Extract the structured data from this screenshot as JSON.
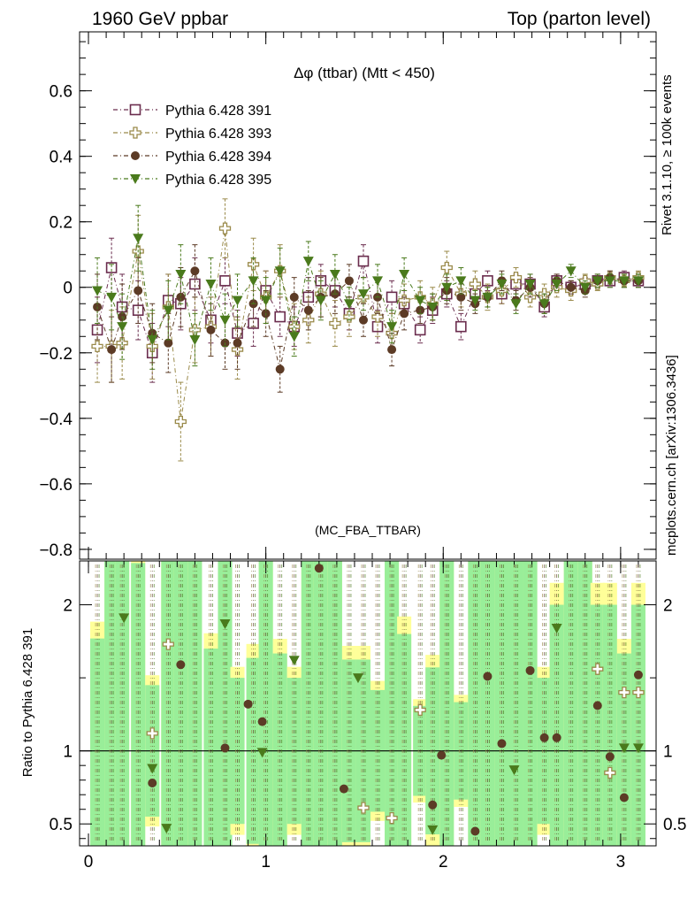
{
  "header": {
    "left": "1960 GeV ppbar",
    "right": "Top (parton level)"
  },
  "side": {
    "rivet": "Rivet 3.1.10, ≥ 100k events",
    "mcplots": "mcplots.cern.ch [arXiv:1306.3436]"
  },
  "chart_data": {
    "type": "scatter",
    "title": "Δφ (ttbar) (Mtt < 450)",
    "watermark": "(MC_FBA_TTBAR)",
    "xlim": [
      -0.05,
      3.2
    ],
    "ylim": [
      -0.83,
      0.78
    ],
    "x_ticks": [
      0,
      1,
      2,
      3
    ],
    "y_ticks": [
      0.6,
      0.4,
      0.2,
      0,
      -0.2,
      -0.4,
      -0.6,
      -0.8
    ],
    "x_tick_labels": [
      "0",
      "1",
      "2",
      "3"
    ],
    "y_tick_labels": [
      "0.6",
      "0.4",
      "0.2",
      "0",
      "−0.2",
      "−0.4",
      "−0.6",
      "−0.8"
    ],
    "x": [
      0.05,
      0.13,
      0.19,
      0.28,
      0.36,
      0.45,
      0.52,
      0.6,
      0.69,
      0.77,
      0.84,
      0.93,
      1.0,
      1.08,
      1.16,
      1.24,
      1.31,
      1.39,
      1.47,
      1.55,
      1.63,
      1.71,
      1.78,
      1.87,
      1.94,
      2.02,
      2.1,
      2.18,
      2.25,
      2.33,
      2.41,
      2.49,
      2.57,
      2.64,
      2.72,
      2.8,
      2.87,
      2.94,
      3.02,
      3.1
    ],
    "series": [
      {
        "name": "Pythia 6.428 391",
        "color": "#6b2d4e",
        "marker": "open-square",
        "values": [
          -0.13,
          0.06,
          -0.06,
          -0.07,
          -0.2,
          -0.04,
          -0.05,
          0.01,
          -0.1,
          0.02,
          -0.14,
          -0.11,
          -0.01,
          -0.09,
          -0.12,
          -0.03,
          0.02,
          -0.01,
          -0.08,
          0.08,
          -0.12,
          -0.03,
          -0.05,
          -0.13,
          -0.07,
          -0.02,
          -0.12,
          -0.02,
          0.02,
          -0.02,
          0.01,
          0.01,
          -0.06,
          0.02,
          0.0,
          0.01,
          0.02,
          0.02,
          0.03,
          0.02
        ],
        "errors": [
          0.1,
          0.09,
          0.1,
          0.09,
          0.09,
          0.08,
          0.08,
          0.08,
          0.07,
          0.07,
          0.07,
          0.07,
          0.06,
          0.06,
          0.06,
          0.06,
          0.05,
          0.05,
          0.05,
          0.05,
          0.05,
          0.05,
          0.04,
          0.04,
          0.04,
          0.04,
          0.04,
          0.03,
          0.03,
          0.03,
          0.03,
          0.03,
          0.03,
          0.02,
          0.02,
          0.02,
          0.02,
          0.02,
          0.02,
          0.02
        ]
      },
      {
        "name": "Pythia 6.428 393",
        "color": "#9a8a4a",
        "marker": "open-plus",
        "values": [
          -0.18,
          -0.18,
          -0.17,
          0.11,
          -0.18,
          -0.06,
          -0.41,
          -0.13,
          -0.12,
          0.18,
          -0.19,
          0.07,
          -0.03,
          0.05,
          -0.12,
          -0.1,
          -0.02,
          -0.11,
          -0.09,
          -0.03,
          -0.09,
          -0.14,
          -0.04,
          -0.03,
          -0.05,
          0.06,
          -0.02,
          0.01,
          -0.03,
          -0.01,
          0.03,
          -0.03,
          -0.02,
          0.0,
          -0.01,
          0.02,
          0.01,
          0.03,
          0.02,
          0.03
        ],
        "errors": [
          0.11,
          0.11,
          0.11,
          0.11,
          0.1,
          0.1,
          0.12,
          0.1,
          0.09,
          0.09,
          0.09,
          0.08,
          0.08,
          0.08,
          0.07,
          0.07,
          0.07,
          0.07,
          0.06,
          0.06,
          0.06,
          0.06,
          0.05,
          0.05,
          0.05,
          0.05,
          0.04,
          0.04,
          0.04,
          0.04,
          0.03,
          0.03,
          0.03,
          0.03,
          0.03,
          0.02,
          0.02,
          0.02,
          0.02,
          0.02
        ]
      },
      {
        "name": "Pythia 6.428 394",
        "color": "#5c3b26",
        "marker": "filled-circle",
        "values": [
          -0.06,
          -0.19,
          -0.09,
          -0.01,
          -0.14,
          -0.17,
          -0.03,
          0.05,
          -0.13,
          -0.17,
          -0.17,
          -0.05,
          -0.08,
          -0.25,
          -0.03,
          -0.07,
          -0.03,
          -0.02,
          0.02,
          -0.1,
          -0.03,
          -0.19,
          -0.08,
          -0.07,
          -0.06,
          -0.01,
          -0.03,
          -0.05,
          -0.03,
          0.02,
          -0.04,
          0.0,
          -0.05,
          0.02,
          0.0,
          -0.01,
          0.02,
          0.03,
          0.02,
          0.02
        ],
        "errors": [
          0.1,
          0.1,
          0.1,
          0.1,
          0.09,
          0.09,
          0.09,
          0.08,
          0.08,
          0.08,
          0.08,
          0.07,
          0.07,
          0.07,
          0.06,
          0.06,
          0.06,
          0.06,
          0.05,
          0.05,
          0.05,
          0.05,
          0.05,
          0.04,
          0.04,
          0.04,
          0.04,
          0.03,
          0.03,
          0.03,
          0.03,
          0.03,
          0.03,
          0.02,
          0.02,
          0.02,
          0.02,
          0.02,
          0.02,
          0.02
        ]
      },
      {
        "name": "Pythia 6.428 395",
        "color": "#4a7a1c",
        "marker": "filled-triangle-down",
        "values": [
          -0.01,
          -0.03,
          -0.12,
          0.15,
          -0.16,
          -0.07,
          0.04,
          -0.16,
          0.01,
          -0.1,
          -0.04,
          0.02,
          -0.04,
          0.05,
          -0.15,
          0.08,
          -0.04,
          0.04,
          -0.05,
          -0.02,
          0.02,
          -0.12,
          0.04,
          -0.04,
          -0.06,
          0.0,
          0.02,
          -0.04,
          -0.03,
          0.01,
          -0.05,
          0.01,
          -0.05,
          0.01,
          0.05,
          0.0,
          0.02,
          0.02,
          0.02,
          0.02
        ],
        "errors": [
          0.1,
          0.1,
          0.1,
          0.1,
          0.09,
          0.09,
          0.09,
          0.08,
          0.08,
          0.08,
          0.08,
          0.07,
          0.07,
          0.07,
          0.06,
          0.06,
          0.06,
          0.06,
          0.05,
          0.05,
          0.05,
          0.05,
          0.05,
          0.04,
          0.04,
          0.04,
          0.04,
          0.03,
          0.03,
          0.03,
          0.03,
          0.03,
          0.03,
          0.02,
          0.02,
          0.02,
          0.02,
          0.02,
          0.02,
          0.02
        ]
      }
    ],
    "ratio": {
      "ylabel": "Ratio to Pythia 6.428 391",
      "ylim": [
        0.35,
        2.3
      ],
      "y_ticks": [
        0.5,
        1,
        2
      ],
      "y_tick_labels": [
        "0.5",
        "1",
        "2"
      ],
      "reference_line": 1,
      "band_colors": {
        "green": "#99ee99",
        "yellow": "#ffff99"
      },
      "points": [
        {
          "x": 0.36,
          "series": "Pythia 6.428 393",
          "value": 1.12
        },
        {
          "x": 0.45,
          "series": "Pythia 6.428 393",
          "value": 1.73
        },
        {
          "x": 1.87,
          "series": "Pythia 6.428 393",
          "value": 1.28
        },
        {
          "x": 1.55,
          "series": "Pythia 6.428 393",
          "value": 0.61
        },
        {
          "x": 1.71,
          "series": "Pythia 6.428 393",
          "value": 0.54
        },
        {
          "x": 2.87,
          "series": "Pythia 6.428 393",
          "value": 1.56
        },
        {
          "x": 2.94,
          "series": "Pythia 6.428 393",
          "value": 0.85
        },
        {
          "x": 3.02,
          "series": "Pythia 6.428 393",
          "value": 1.4
        },
        {
          "x": 3.1,
          "series": "Pythia 6.428 393",
          "value": 1.4
        },
        {
          "x": 0.36,
          "series": "Pythia 6.428 394",
          "value": 0.78
        },
        {
          "x": 0.52,
          "series": "Pythia 6.428 394",
          "value": 1.59
        },
        {
          "x": 0.77,
          "series": "Pythia 6.428 394",
          "value": 1.02
        },
        {
          "x": 0.9,
          "series": "Pythia 6.428 394",
          "value": 1.32
        },
        {
          "x": 0.98,
          "series": "Pythia 6.428 394",
          "value": 1.2
        },
        {
          "x": 1.3,
          "series": "Pythia 6.428 394",
          "value": 2.25
        },
        {
          "x": 1.44,
          "series": "Pythia 6.428 394",
          "value": 0.74
        },
        {
          "x": 1.94,
          "series": "Pythia 6.428 394",
          "value": 0.63
        },
        {
          "x": 1.99,
          "series": "Pythia 6.428 394",
          "value": 0.97
        },
        {
          "x": 2.18,
          "series": "Pythia 6.428 394",
          "value": 0.45
        },
        {
          "x": 2.25,
          "series": "Pythia 6.428 394",
          "value": 1.51
        },
        {
          "x": 2.33,
          "series": "Pythia 6.428 394",
          "value": 1.05
        },
        {
          "x": 2.49,
          "series": "Pythia 6.428 394",
          "value": 1.55
        },
        {
          "x": 2.57,
          "series": "Pythia 6.428 394",
          "value": 1.09
        },
        {
          "x": 2.64,
          "series": "Pythia 6.428 394",
          "value": 1.09
        },
        {
          "x": 2.87,
          "series": "Pythia 6.428 394",
          "value": 1.31
        },
        {
          "x": 2.94,
          "series": "Pythia 6.428 394",
          "value": 0.96
        },
        {
          "x": 3.02,
          "series": "Pythia 6.428 394",
          "value": 0.68
        },
        {
          "x": 3.1,
          "series": "Pythia 6.428 394",
          "value": 1.52
        },
        {
          "x": 0.2,
          "series": "Pythia 6.428 395",
          "value": 1.91
        },
        {
          "x": 0.36,
          "series": "Pythia 6.428 395",
          "value": 0.88
        },
        {
          "x": 0.44,
          "series": "Pythia 6.428 395",
          "value": 0.47
        },
        {
          "x": 0.77,
          "series": "Pythia 6.428 395",
          "value": 1.87
        },
        {
          "x": 0.98,
          "series": "Pythia 6.428 395",
          "value": 0.99
        },
        {
          "x": 1.16,
          "series": "Pythia 6.428 395",
          "value": 1.62
        },
        {
          "x": 1.52,
          "series": "Pythia 6.428 395",
          "value": 1.5
        },
        {
          "x": 1.94,
          "series": "Pythia 6.428 395",
          "value": 0.46
        },
        {
          "x": 2.4,
          "series": "Pythia 6.428 395",
          "value": 0.87
        },
        {
          "x": 2.64,
          "series": "Pythia 6.428 395",
          "value": 1.84
        },
        {
          "x": 3.02,
          "series": "Pythia 6.428 395",
          "value": 1.02
        },
        {
          "x": 3.1,
          "series": "Pythia 6.428 395",
          "value": 1.02
        }
      ]
    }
  }
}
